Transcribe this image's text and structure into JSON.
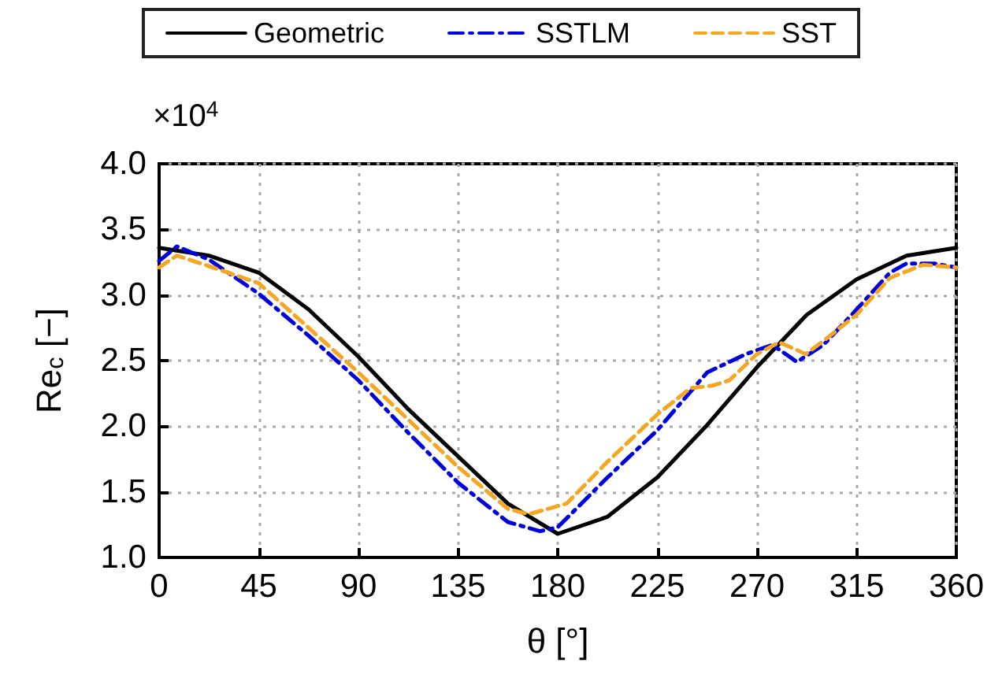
{
  "chart_data": {
    "type": "line",
    "xlabel": "θ [°]",
    "ylabel": "Re$_{c}$ [−]",
    "annotations": [
      "×10$^{4}$"
    ],
    "xlim": [
      0,
      360
    ],
    "xticks": [
      0,
      45,
      90,
      135,
      180,
      225,
      270,
      315,
      360
    ],
    "ylim": [
      1,
      4
    ],
    "yticks": [
      {
        "value": 1,
        "label": "1.0"
      },
      {
        "value": 1.5,
        "label": "1.5"
      },
      {
        "value": 2,
        "label": "2.0"
      },
      {
        "value": 2.5,
        "label": "2.5"
      },
      {
        "value": 3,
        "label": "3.0"
      },
      {
        "value": 3.5,
        "label": "3.5"
      },
      {
        "value": 4,
        "label": "4.0"
      }
    ],
    "grid": true,
    "legend": "top",
    "marker": "none",
    "series": [
      {
        "name": "Geometric",
        "color": "#000000",
        "line_style": "solid",
        "x": [
          0,
          22.5,
          45,
          67.5,
          90,
          112.5,
          135,
          157.5,
          180,
          202.5,
          225,
          247.5,
          270,
          292.5,
          315,
          337.5,
          360
        ],
        "values": [
          3.36,
          3.3,
          3.17,
          2.89,
          2.53,
          2.13,
          1.77,
          1.41,
          1.18,
          1.31,
          1.61,
          2.01,
          2.45,
          2.85,
          3.12,
          3.3,
          3.36
        ]
      },
      {
        "name": "SSTLM",
        "color": "#0000dd",
        "line_style": "dashdot",
        "x": [
          0,
          8,
          22.5,
          45,
          67.5,
          90,
          112.5,
          135,
          157.5,
          172,
          180,
          202.5,
          225,
          247.5,
          265,
          277,
          288,
          300,
          315,
          330,
          337.5,
          350,
          360
        ],
        "values": [
          3.26,
          3.37,
          3.27,
          3.01,
          2.69,
          2.35,
          1.95,
          1.57,
          1.27,
          1.2,
          1.23,
          1.61,
          1.97,
          2.41,
          2.55,
          2.62,
          2.49,
          2.62,
          2.89,
          3.17,
          3.24,
          3.24,
          3.21
        ]
      },
      {
        "name": "SST",
        "color": "#f5a623",
        "line_style": "dashed",
        "x": [
          0,
          8,
          22.5,
          45,
          67.5,
          90,
          112.5,
          135,
          157.5,
          167,
          184,
          202.5,
          225,
          240,
          250,
          257.5,
          270,
          280,
          292,
          300,
          315,
          330,
          345,
          360
        ],
        "values": [
          3.21,
          3.3,
          3.22,
          3.09,
          2.75,
          2.41,
          2.05,
          1.69,
          1.37,
          1.33,
          1.41,
          1.73,
          2.09,
          2.29,
          2.31,
          2.35,
          2.55,
          2.64,
          2.55,
          2.65,
          2.85,
          3.13,
          3.23,
          3.21
        ]
      }
    ]
  }
}
